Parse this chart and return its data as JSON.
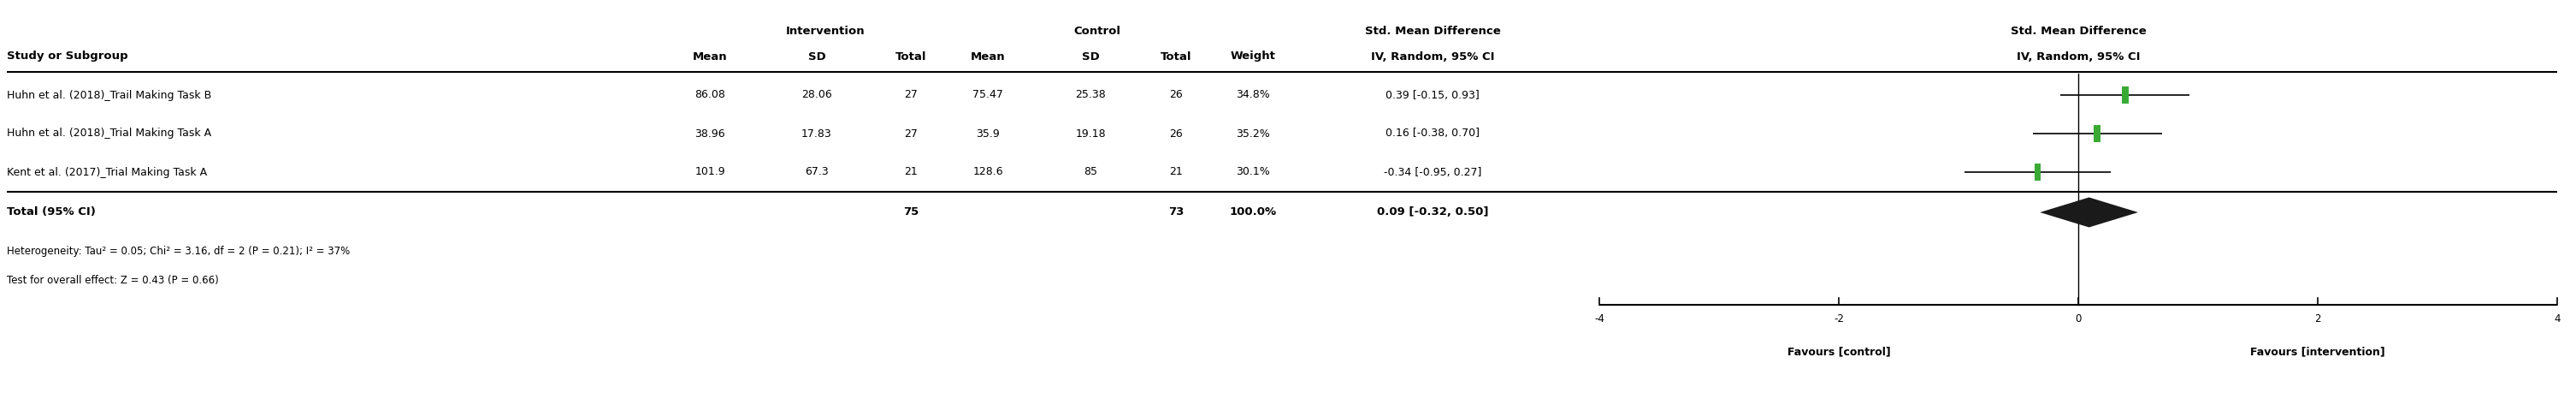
{
  "studies": [
    {
      "label": "Huhn et al. (2018)_Trail Making Task B",
      "int_mean": "86.08",
      "int_sd": "28.06",
      "int_n": "27",
      "ctrl_mean": "75.47",
      "ctrl_sd": "25.38",
      "ctrl_n": "26",
      "weight": "34.8%",
      "smd": 0.39,
      "ci_low": -0.15,
      "ci_high": 0.93,
      "smd_text": "0.39 [-0.15, 0.93]"
    },
    {
      "label": "Huhn et al. (2018)_Trial Making Task A",
      "int_mean": "38.96",
      "int_sd": "17.83",
      "int_n": "27",
      "ctrl_mean": "35.9",
      "ctrl_sd": "19.18",
      "ctrl_n": "26",
      "weight": "35.2%",
      "smd": 0.16,
      "ci_low": -0.38,
      "ci_high": 0.7,
      "smd_text": "0.16 [-0.38, 0.70]"
    },
    {
      "label": "Kent et al. (2017)_Trial Making Task A",
      "int_mean": "101.9",
      "int_sd": "67.3",
      "int_n": "21",
      "ctrl_mean": "128.6",
      "ctrl_sd": "85",
      "ctrl_n": "21",
      "weight": "30.1%",
      "smd": -0.34,
      "ci_low": -0.95,
      "ci_high": 0.27,
      "smd_text": "-0.34 [-0.95, 0.27]"
    }
  ],
  "total": {
    "label": "Total (95% CI)",
    "int_n": "75",
    "ctrl_n": "73",
    "weight": "100.0%",
    "smd": 0.09,
    "ci_low": -0.32,
    "ci_high": 0.5,
    "smd_text": "0.09 [-0.32, 0.50]"
  },
  "heterogeneity_text": "Heterogeneity: Tau² = 0.05; Chi² = 3.16, df = 2 (P = 0.21); I² = 37%",
  "overall_effect_text": "Test for overall effect: Z = 0.43 (P = 0.66)",
  "plot_xlim": [
    -4,
    4
  ],
  "plot_xticks": [
    -4,
    -2,
    0,
    2,
    4
  ],
  "xlabel_left": "Favours [control]",
  "xlabel_right": "Favours [intervention]",
  "marker_color": "#3aaa35",
  "diamond_color": "#1a1a1a",
  "line_color": "#1a1a1a",
  "background_color": "#ffffff",
  "std_mean_diff_header": "Std. Mean Difference",
  "font_size": 9.0,
  "bold_font_size": 9.5
}
